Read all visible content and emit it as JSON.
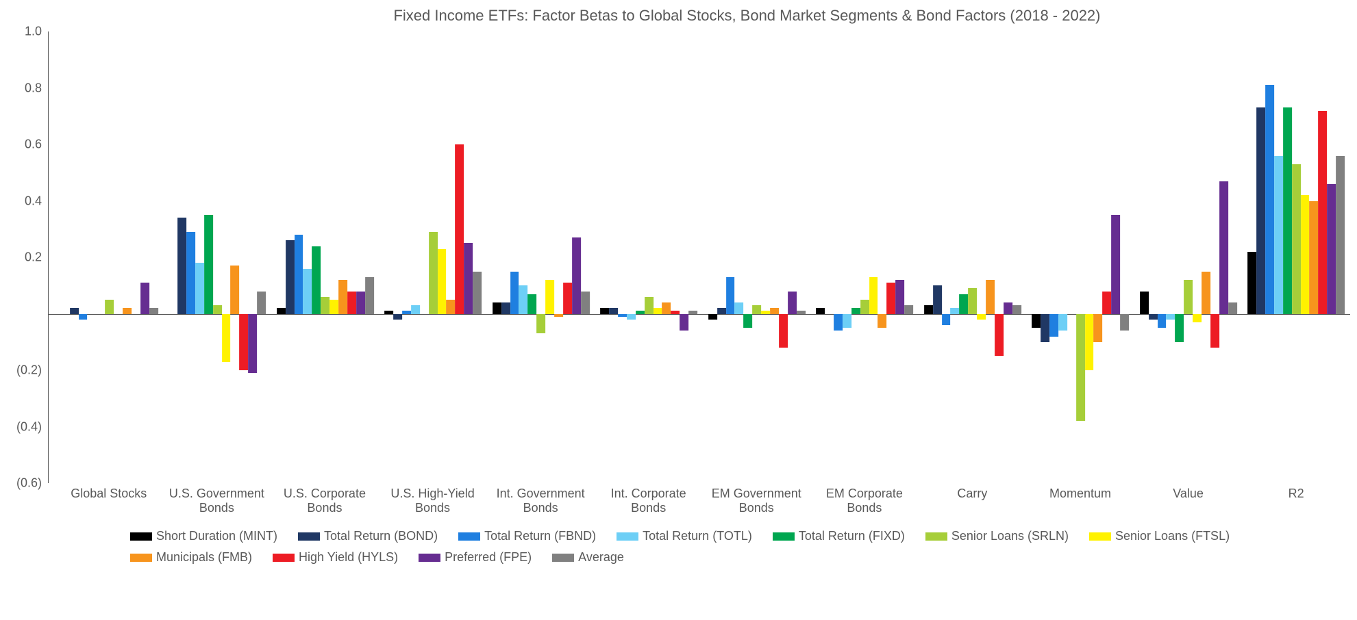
{
  "chart": {
    "type": "bar",
    "title": "Fixed Income ETFs: Factor Betas to Global Stocks, Bond Market Segments & Bond Factors (2018 - 2022)",
    "title_fontsize": 22,
    "background_color": "#ffffff",
    "text_color": "#595959",
    "axis_color": "#595959",
    "ylim": [
      -0.6,
      1.0
    ],
    "ytick_step": 0.2,
    "yticks": [
      {
        "value": 1.0,
        "label": "1.0"
      },
      {
        "value": 0.8,
        "label": "0.8"
      },
      {
        "value": 0.6,
        "label": "0.6"
      },
      {
        "value": 0.4,
        "label": "0.4"
      },
      {
        "value": 0.2,
        "label": "0.2"
      },
      {
        "value": -0.2,
        "label": "(0.2)"
      },
      {
        "value": -0.4,
        "label": "(0.4)"
      },
      {
        "value": -0.6,
        "label": "(0.6)"
      }
    ],
    "categories": [
      "Global Stocks",
      "U.S. Government Bonds",
      "U.S. Corporate Bonds",
      "U.S. High-Yield Bonds",
      "Int. Government Bonds",
      "Int. Corporate Bonds",
      "EM Government Bonds",
      "EM Corporate Bonds",
      "Carry",
      "Momentum",
      "Value",
      "R2"
    ],
    "series": [
      {
        "name": "Short Duration (MINT)",
        "color": "#000000",
        "values": [
          0.0,
          0.0,
          0.02,
          0.01,
          0.04,
          0.02,
          -0.02,
          0.02,
          0.03,
          -0.05,
          0.08,
          0.22
        ]
      },
      {
        "name": "Total Return (BOND)",
        "color": "#203864",
        "values": [
          0.02,
          0.34,
          0.26,
          -0.02,
          0.04,
          0.02,
          0.02,
          0.0,
          0.1,
          -0.1,
          -0.02,
          0.73
        ]
      },
      {
        "name": "Total Return (FBND)",
        "color": "#1f7fe0",
        "values": [
          -0.02,
          0.29,
          0.28,
          0.01,
          0.15,
          -0.01,
          0.13,
          -0.06,
          -0.04,
          -0.08,
          -0.05,
          0.81
        ]
      },
      {
        "name": "Total Return (TOTL)",
        "color": "#6dcff6",
        "values": [
          0.0,
          0.18,
          0.16,
          0.03,
          0.1,
          -0.02,
          0.04,
          -0.05,
          0.02,
          -0.06,
          -0.02,
          0.56
        ]
      },
      {
        "name": "Total Return (FIXD)",
        "color": "#00a650",
        "values": [
          0.0,
          0.35,
          0.24,
          0.0,
          0.07,
          0.01,
          -0.05,
          0.02,
          0.07,
          0.0,
          -0.1,
          0.73
        ]
      },
      {
        "name": "Senior Loans (SRLN)",
        "color": "#a6ce39",
        "values": [
          0.05,
          0.03,
          0.06,
          0.29,
          -0.07,
          0.06,
          0.03,
          0.05,
          0.09,
          -0.38,
          0.12,
          0.53
        ]
      },
      {
        "name": "Senior Loans (FTSL)",
        "color": "#fff200",
        "values": [
          0.0,
          -0.17,
          0.05,
          0.23,
          0.12,
          0.02,
          0.01,
          0.13,
          -0.02,
          -0.2,
          -0.03,
          0.42
        ]
      },
      {
        "name": "Municipals (FMB)",
        "color": "#f7941d",
        "values": [
          0.02,
          0.17,
          0.12,
          0.05,
          -0.01,
          0.04,
          0.02,
          -0.05,
          0.12,
          -0.1,
          0.15,
          0.4
        ]
      },
      {
        "name": "High Yield (HYLS)",
        "color": "#ed1c24",
        "values": [
          0.0,
          -0.2,
          0.08,
          0.6,
          0.11,
          0.01,
          -0.12,
          0.11,
          -0.15,
          0.08,
          -0.12,
          0.72
        ]
      },
      {
        "name": "Preferred (FPE)",
        "color": "#662d91",
        "values": [
          0.11,
          -0.21,
          0.08,
          0.25,
          0.27,
          -0.06,
          0.08,
          0.12,
          0.04,
          0.35,
          0.47,
          0.46
        ]
      },
      {
        "name": "Average",
        "color": "#808080",
        "values": [
          0.02,
          0.08,
          0.13,
          0.15,
          0.08,
          0.01,
          0.01,
          0.03,
          0.03,
          -0.06,
          0.04,
          0.56
        ]
      }
    ],
    "legend_position": "bottom",
    "label_fontsize": 18
  }
}
